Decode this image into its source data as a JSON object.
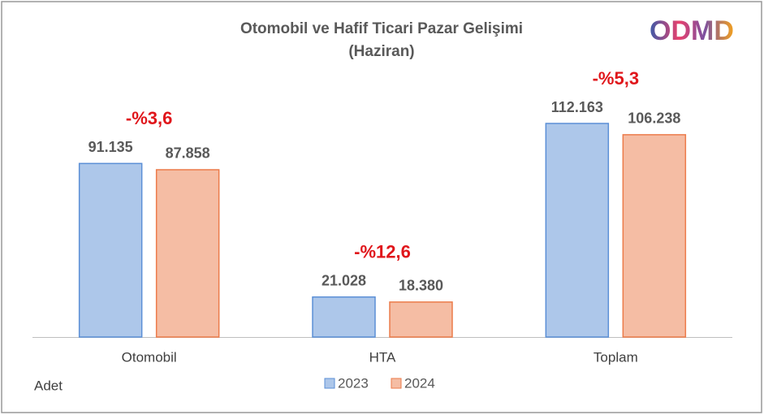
{
  "chart_data": {
    "type": "bar",
    "title": "Otomobil ve Hafif Ticari Pazar Gelişimi",
    "subtitle": "(Haziran)",
    "logo": "ODMD",
    "unit_label": "Adet",
    "categories": [
      "Otomobil",
      "HTA",
      "Toplam"
    ],
    "series": [
      {
        "name": "2023",
        "color": "#5b8fd6",
        "values": [
          91135,
          21028,
          112163
        ],
        "value_labels": [
          "91.135",
          "21.028",
          "112.163"
        ]
      },
      {
        "name": "2024",
        "color": "#ec7b4a",
        "values": [
          87858,
          18380,
          106238
        ],
        "value_labels": [
          "87.858",
          "18.380",
          "106.238"
        ]
      }
    ],
    "annotations": [
      "-%3,6",
      "-%12,6",
      "-%5,3"
    ],
    "annotation_color": "#e0161b",
    "legend": "bottom"
  }
}
